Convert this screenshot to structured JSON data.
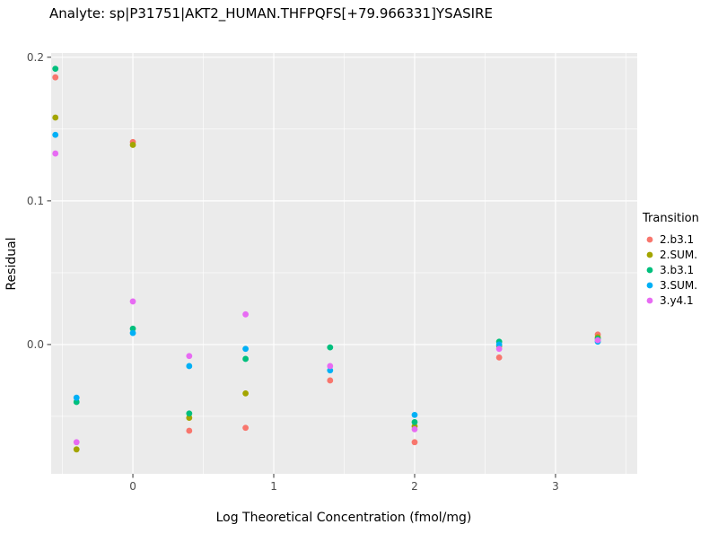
{
  "chart_data": {
    "type": "scatter",
    "title": "Analyte: sp|P31751|AKT2_HUMAN.THFPQFS[+79.966331]YSASIRE",
    "xlabel": "Log Theoretical Concentration (fmol/mg)",
    "ylabel": "Residual",
    "legend_title": "Transition",
    "legend_position": "right",
    "grid": true,
    "panel_bg": "#EBEBEB",
    "grid_color": "#FFFFFF",
    "tick_text_color": "#4D4D4D",
    "tick_mark_color": "#333333",
    "xlim": [
      -0.58,
      3.58
    ],
    "ylim": [
      -0.09,
      0.203
    ],
    "x_tick_values": [
      0,
      1,
      2,
      3
    ],
    "x_tick_labels": [
      "0",
      "1",
      "2",
      "3"
    ],
    "y_tick_values": [
      0.0,
      0.1,
      0.2
    ],
    "y_tick_labels": [
      "0.0",
      "0.1",
      "0.2"
    ],
    "x_minor": [
      -0.5,
      0.5,
      1.5,
      2.5,
      3.5
    ],
    "y_minor": [
      -0.05,
      0.05,
      0.15
    ],
    "series": [
      {
        "name": "2.b3.1",
        "color": "#F8766D",
        "points": [
          [
            -0.55,
            0.186
          ],
          [
            0,
            0.141
          ],
          [
            0.4,
            -0.06
          ],
          [
            0.8,
            -0.058
          ],
          [
            1.4,
            -0.025
          ],
          [
            2,
            -0.068
          ],
          [
            2.6,
            -0.009
          ],
          [
            3.3,
            0.007
          ]
        ]
      },
      {
        "name": "2.SUM.",
        "color": "#A3A500",
        "points": [
          [
            -0.55,
            0.158
          ],
          [
            -0.4,
            -0.073
          ],
          [
            0,
            0.139
          ],
          [
            0.4,
            -0.051
          ],
          [
            0.8,
            -0.034
          ],
          [
            2,
            -0.057
          ],
          [
            2.6,
            -0.001
          ],
          [
            3.3,
            0.005
          ]
        ]
      },
      {
        "name": "3.b3.1",
        "color": "#00BF7D",
        "points": [
          [
            -0.55,
            0.192
          ],
          [
            -0.4,
            -0.04
          ],
          [
            0,
            0.011
          ],
          [
            0.4,
            -0.048
          ],
          [
            0.8,
            -0.01
          ],
          [
            1.4,
            -0.002
          ],
          [
            2,
            -0.054
          ],
          [
            2.6,
            0.002
          ],
          [
            3.3,
            0.004
          ]
        ]
      },
      {
        "name": "3.SUM.",
        "color": "#00B0F6",
        "points": [
          [
            -0.55,
            0.146
          ],
          [
            -0.4,
            -0.037
          ],
          [
            0,
            0.008
          ],
          [
            0.4,
            -0.015
          ],
          [
            0.8,
            -0.003
          ],
          [
            1.4,
            -0.018
          ],
          [
            2,
            -0.049
          ],
          [
            2.6,
            0.0
          ],
          [
            3.3,
            0.002
          ]
        ]
      },
      {
        "name": "3.y4.1",
        "color": "#E76BF3",
        "points": [
          [
            -0.55,
            0.133
          ],
          [
            -0.4,
            -0.068
          ],
          [
            0,
            0.03
          ],
          [
            0.4,
            -0.008
          ],
          [
            0.8,
            0.021
          ],
          [
            1.4,
            -0.015
          ],
          [
            2,
            -0.059
          ],
          [
            2.6,
            -0.003
          ],
          [
            3.3,
            0.003
          ]
        ]
      }
    ]
  }
}
